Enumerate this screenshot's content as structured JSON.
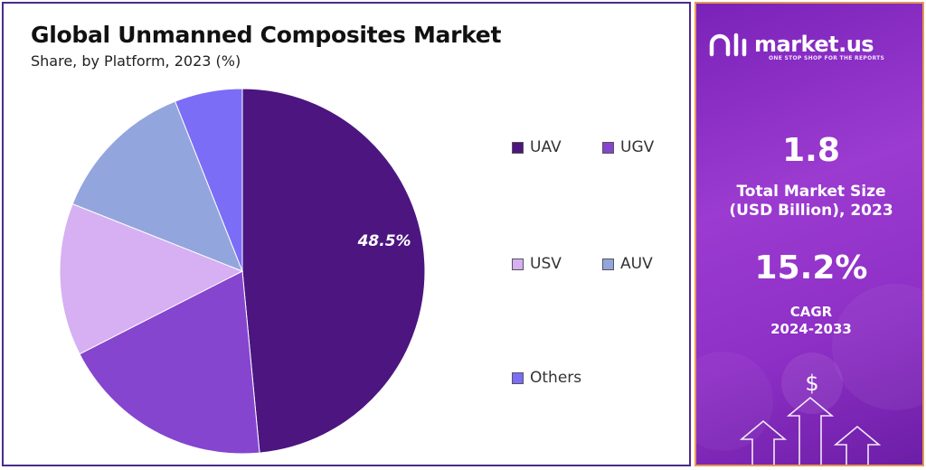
{
  "header": {
    "title": "Global Unmanned Composites Market",
    "subtitle": "Share, by Platform, 2023 (%)"
  },
  "chart_data": {
    "type": "pie",
    "title": "Global Unmanned Composites Market",
    "subtitle": "Share, by Platform, 2023 (%)",
    "categories": [
      "UAV",
      "UGV",
      "USV",
      "AUV",
      "Others"
    ],
    "values": [
      48.5,
      19.0,
      13.5,
      13.0,
      6.0
    ],
    "colors": [
      "#4c1580",
      "#8545cf",
      "#d6b0f2",
      "#93a5dd",
      "#7b6df6"
    ],
    "data_labels": [
      {
        "category": "UAV",
        "text": "48.5%"
      }
    ],
    "legend_position": "right"
  },
  "brand": {
    "name": "market.us",
    "tagline": "ONE STOP SHOP FOR THE REPORTS"
  },
  "stats": {
    "market_size_value": "1.8",
    "market_size_label_line1": "Total Market Size",
    "market_size_label_line2": "(USD Billion), 2023",
    "cagr_value": "15.2%",
    "cagr_label_line1": "CAGR",
    "cagr_label_line2": "2024-2033"
  },
  "decor": {
    "dollar_symbol": "$"
  },
  "theme": {
    "panel_border": "#4b2a8a",
    "accent_border": "#e39a55"
  }
}
